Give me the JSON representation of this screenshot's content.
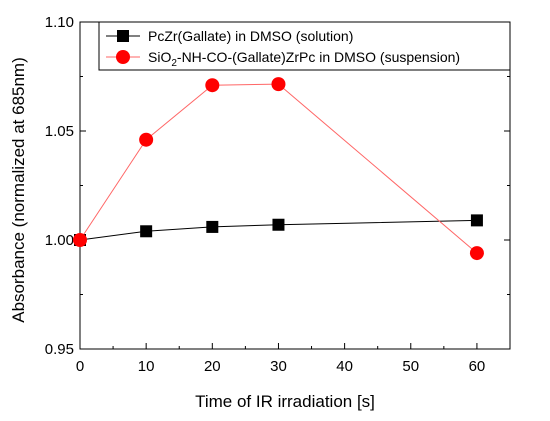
{
  "chart_data": {
    "type": "line",
    "xlabel": "Time of IR irradiation [s]",
    "ylabel": "Absorbance (normalized at 685nm)",
    "xlim": [
      0,
      65
    ],
    "ylim": [
      0.95,
      1.1
    ],
    "xticks": [
      0,
      10,
      20,
      30,
      40,
      50,
      60
    ],
    "yticks": [
      0.95,
      1.0,
      1.05,
      1.1
    ],
    "ytick_labels": [
      "0.95",
      "1.00",
      "1.05",
      "1.10"
    ],
    "grid": false,
    "legend_position": "top-left",
    "series": [
      {
        "name": "PcZr(Gallate) in DMSO (solution)",
        "marker": "square",
        "color": "#000000",
        "line_color": "#000000",
        "x": [
          0,
          10,
          20,
          30,
          60
        ],
        "y": [
          1.0,
          1.004,
          1.006,
          1.007,
          1.009
        ]
      },
      {
        "name_parts": [
          "SiO",
          "2",
          "-NH-CO-(Gallate)ZrPc in DMSO (suspension)"
        ],
        "marker": "circle",
        "color": "#ff0000",
        "line_color": "#ff6666",
        "x": [
          0,
          10,
          20,
          30,
          60
        ],
        "y": [
          1.0,
          1.046,
          1.071,
          1.0715,
          0.994
        ]
      }
    ]
  }
}
